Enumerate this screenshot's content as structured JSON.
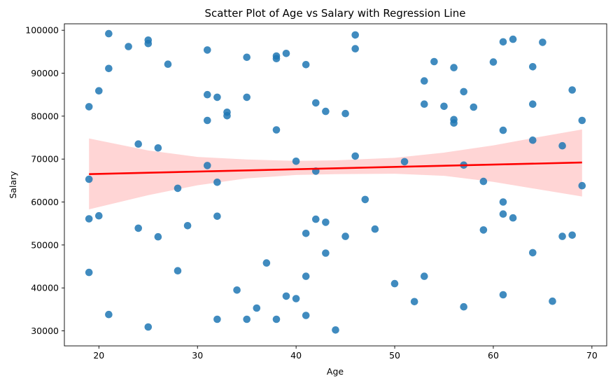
{
  "chart_data": {
    "type": "scatter",
    "title": "Scatter Plot of Age vs Salary with Regression Line",
    "xlabel": "Age",
    "ylabel": "Salary",
    "xlim": [
      16.5,
      71.5
    ],
    "ylim": [
      26500,
      101500
    ],
    "xticks": [
      20,
      30,
      40,
      50,
      60,
      70
    ],
    "yticks": [
      30000,
      40000,
      50000,
      60000,
      70000,
      80000,
      90000,
      100000
    ],
    "grid": false,
    "colors": {
      "points": "#1f77b4",
      "line": "#ff0000",
      "band": "#ffb3b3"
    },
    "series": [
      {
        "points": [
          [
            21,
            99200
          ],
          [
            25,
            97700
          ],
          [
            25,
            96900
          ],
          [
            23,
            96200
          ],
          [
            21,
            91100
          ],
          [
            27,
            92100
          ],
          [
            20,
            85900
          ],
          [
            19,
            82200
          ],
          [
            31,
            95400
          ],
          [
            35,
            93700
          ],
          [
            38,
            94000
          ],
          [
            38,
            93400
          ],
          [
            39,
            94600
          ],
          [
            41,
            92000
          ],
          [
            46,
            98900
          ],
          [
            46,
            95700
          ],
          [
            31,
            85000
          ],
          [
            32,
            84400
          ],
          [
            35,
            84400
          ],
          [
            33,
            80900
          ],
          [
            33,
            80100
          ],
          [
            31,
            79000
          ],
          [
            38,
            76800
          ],
          [
            42,
            83100
          ],
          [
            43,
            81100
          ],
          [
            45,
            80600
          ],
          [
            24,
            73500
          ],
          [
            26,
            72600
          ],
          [
            31,
            68500
          ],
          [
            40,
            69500
          ],
          [
            42,
            67200
          ],
          [
            46,
            70700
          ],
          [
            19,
            65300
          ],
          [
            32,
            64600
          ],
          [
            28,
            63200
          ],
          [
            47,
            60600
          ],
          [
            19,
            56100
          ],
          [
            20,
            56800
          ],
          [
            32,
            56700
          ],
          [
            24,
            53900
          ],
          [
            26,
            51900
          ],
          [
            29,
            54500
          ],
          [
            42,
            56000
          ],
          [
            43,
            55300
          ],
          [
            41,
            52700
          ],
          [
            45,
            52000
          ],
          [
            48,
            53700
          ],
          [
            43,
            48100
          ],
          [
            37,
            45800
          ],
          [
            19,
            43600
          ],
          [
            28,
            44000
          ],
          [
            34,
            39500
          ],
          [
            39,
            38100
          ],
          [
            40,
            37500
          ],
          [
            41,
            42700
          ],
          [
            36,
            35300
          ],
          [
            21,
            33800
          ],
          [
            25,
            30900
          ],
          [
            32,
            32700
          ],
          [
            35,
            32700
          ],
          [
            38,
            32700
          ],
          [
            41,
            33600
          ],
          [
            44,
            30200
          ],
          [
            50,
            41000
          ],
          [
            52,
            36800
          ],
          [
            53,
            42700
          ],
          [
            57,
            35600
          ],
          [
            61,
            38400
          ],
          [
            66,
            36900
          ],
          [
            54,
            92700
          ],
          [
            53,
            88200
          ],
          [
            56,
            91300
          ],
          [
            60,
            92600
          ],
          [
            61,
            97300
          ],
          [
            62,
            97900
          ],
          [
            65,
            97200
          ],
          [
            64,
            91500
          ],
          [
            57,
            85700
          ],
          [
            68,
            86100
          ],
          [
            53,
            82800
          ],
          [
            55,
            82300
          ],
          [
            58,
            82100
          ],
          [
            56,
            79200
          ],
          [
            56,
            78400
          ],
          [
            64,
            82800
          ],
          [
            61,
            76700
          ],
          [
            69,
            79000
          ],
          [
            64,
            74400
          ],
          [
            67,
            73100
          ],
          [
            51,
            69400
          ],
          [
            57,
            68600
          ],
          [
            59,
            64800
          ],
          [
            69,
            63800
          ],
          [
            61,
            60000
          ],
          [
            61,
            57200
          ],
          [
            62,
            56300
          ],
          [
            59,
            53500
          ],
          [
            64,
            48200
          ],
          [
            67,
            52000
          ],
          [
            68,
            52300
          ]
        ]
      }
    ],
    "regression": {
      "x": [
        19,
        69
      ],
      "y": [
        66500,
        69200
      ]
    },
    "confidence_band": {
      "x": [
        19,
        25,
        30,
        35,
        40,
        44,
        50,
        55,
        60,
        65,
        69
      ],
      "lower": [
        58300,
        61600,
        63900,
        65500,
        66300,
        66500,
        66600,
        66100,
        64700,
        62800,
        61300
      ],
      "upper": [
        74800,
        72000,
        70500,
        69900,
        69600,
        69700,
        70300,
        71500,
        73200,
        75300,
        76900
      ]
    }
  }
}
